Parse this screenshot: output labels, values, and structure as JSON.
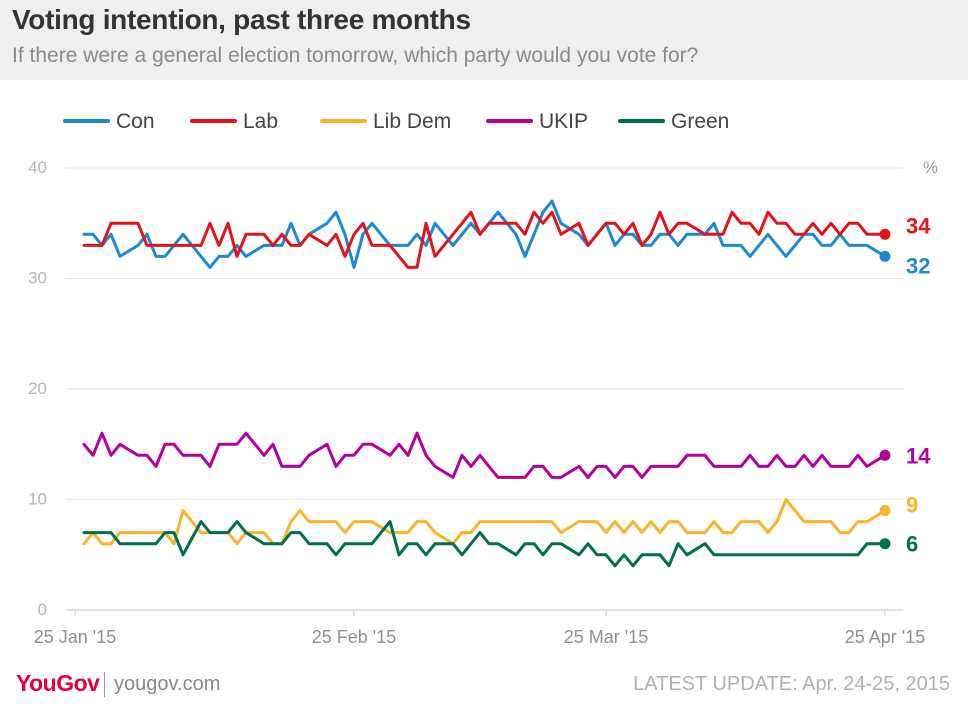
{
  "header": {
    "title": "Voting intention, past three months",
    "subtitle": "If there were a general election tomorrow, which party would you vote for?"
  },
  "footer": {
    "logo": "YouGov",
    "site": "yougov.com",
    "update_label": "LATEST UPDATE:",
    "update_value": "Apr. 24-25, 2015"
  },
  "chart_data": {
    "type": "line",
    "title": "Voting intention, past three months",
    "subtitle": "If there were a general election tomorrow, which party would you vote for?",
    "unit_label": "%",
    "ylim": [
      0,
      40
    ],
    "yticks": [
      0,
      10,
      20,
      30,
      40
    ],
    "xlim": [
      "2015-01-24",
      "2015-04-27"
    ],
    "xticks": [
      {
        "date": "2015-01-25",
        "label": "25 Jan '15"
      },
      {
        "date": "2015-02-25",
        "label": "25 Feb '15"
      },
      {
        "date": "2015-03-25",
        "label": "25 Mar '15"
      },
      {
        "date": "2015-04-25",
        "label": "25 Apr '15"
      }
    ],
    "grid": "horizontal",
    "legend_position": "top",
    "dates": [
      "2015-01-26",
      "2015-01-27",
      "2015-01-28",
      "2015-01-29",
      "2015-01-30",
      "2015-02-01",
      "2015-02-02",
      "2015-02-03",
      "2015-02-04",
      "2015-02-05",
      "2015-02-06",
      "2015-02-08",
      "2015-02-09",
      "2015-02-10",
      "2015-02-11",
      "2015-02-12",
      "2015-02-13",
      "2015-02-15",
      "2015-02-16",
      "2015-02-17",
      "2015-02-18",
      "2015-02-19",
      "2015-02-20",
      "2015-02-22",
      "2015-02-23",
      "2015-02-24",
      "2015-02-25",
      "2015-02-26",
      "2015-02-27",
      "2015-03-01",
      "2015-03-02",
      "2015-03-03",
      "2015-03-04",
      "2015-03-05",
      "2015-03-06",
      "2015-03-08",
      "2015-03-09",
      "2015-03-10",
      "2015-03-11",
      "2015-03-12",
      "2015-03-13",
      "2015-03-15",
      "2015-03-16",
      "2015-03-17",
      "2015-03-18",
      "2015-03-19",
      "2015-03-20",
      "2015-03-22",
      "2015-03-23",
      "2015-03-24",
      "2015-03-25",
      "2015-03-26",
      "2015-03-27",
      "2015-03-28",
      "2015-03-29",
      "2015-03-30",
      "2015-03-31",
      "2015-04-01",
      "2015-04-02",
      "2015-04-03",
      "2015-04-05",
      "2015-04-06",
      "2015-04-07",
      "2015-04-08",
      "2015-04-09",
      "2015-04-10",
      "2015-04-11",
      "2015-04-12",
      "2015-04-13",
      "2015-04-14",
      "2015-04-15",
      "2015-04-16",
      "2015-04-17",
      "2015-04-18",
      "2015-04-19",
      "2015-04-20",
      "2015-04-21",
      "2015-04-22",
      "2015-04-23",
      "2015-04-25"
    ],
    "series": [
      {
        "name": "Con",
        "color": "#1d89d3",
        "end_label": "32",
        "values": [
          34,
          34,
          33,
          34,
          32,
          33,
          34,
          32,
          32,
          33,
          34,
          32,
          31,
          32,
          32,
          33,
          32,
          33,
          33,
          33,
          35,
          33,
          34,
          35,
          36,
          34,
          31,
          34,
          35,
          33,
          33,
          33,
          34,
          33,
          35,
          33,
          34,
          35,
          34,
          35,
          36,
          34,
          32,
          34,
          36,
          37,
          35,
          34,
          33,
          34,
          35,
          33,
          34,
          34,
          33,
          33,
          34,
          34,
          33,
          34,
          34,
          35,
          33,
          33,
          33,
          32,
          33,
          34,
          33,
          32,
          33,
          34,
          34,
          33,
          33,
          34,
          33,
          33,
          33,
          32
        ]
      },
      {
        "name": "Lab",
        "color": "#e2141a",
        "end_label": "34",
        "values": [
          33,
          33,
          33,
          35,
          35,
          35,
          33,
          33,
          33,
          33,
          33,
          33,
          35,
          33,
          35,
          32,
          34,
          34,
          33,
          34,
          33,
          33,
          34,
          33,
          34,
          32,
          34,
          35,
          33,
          33,
          32,
          31,
          31,
          35,
          32,
          34,
          35,
          36,
          34,
          35,
          35,
          35,
          34,
          36,
          35,
          36,
          34,
          35,
          33,
          34,
          35,
          35,
          34,
          35,
          33,
          34,
          36,
          34,
          35,
          35,
          34,
          34,
          34,
          36,
          35,
          35,
          34,
          36,
          35,
          35,
          34,
          34,
          35,
          34,
          35,
          34,
          35,
          35,
          34,
          34
        ]
      },
      {
        "name": "Lib Dem",
        "color": "#f9b429",
        "end_label": "9",
        "values": [
          6,
          7,
          6,
          6,
          7,
          7,
          7,
          7,
          7,
          6,
          9,
          7,
          7,
          7,
          7,
          6,
          7,
          7,
          6,
          6,
          8,
          9,
          8,
          8,
          8,
          7,
          8,
          8,
          8,
          7,
          7,
          7,
          8,
          8,
          7,
          6,
          7,
          7,
          8,
          8,
          8,
          8,
          8,
          8,
          8,
          8,
          7,
          8,
          8,
          8,
          7,
          8,
          7,
          8,
          7,
          8,
          7,
          8,
          8,
          7,
          7,
          8,
          7,
          7,
          8,
          8,
          8,
          7,
          8,
          10,
          9,
          8,
          8,
          8,
          8,
          7,
          7,
          8,
          8,
          9
        ]
      },
      {
        "name": "UKIP",
        "color": "#b3009d",
        "end_label": "14",
        "values": [
          15,
          14,
          16,
          14,
          15,
          14,
          14,
          13,
          15,
          15,
          14,
          14,
          13,
          15,
          15,
          15,
          16,
          14,
          15,
          13,
          13,
          13,
          14,
          15,
          13,
          14,
          14,
          15,
          15,
          14,
          15,
          14,
          16,
          14,
          13,
          12,
          14,
          13,
          14,
          13,
          12,
          12,
          12,
          13,
          13,
          12,
          12,
          13,
          12,
          13,
          13,
          12,
          13,
          13,
          12,
          13,
          13,
          13,
          13,
          14,
          14,
          13,
          13,
          13,
          13,
          14,
          13,
          13,
          14,
          13,
          13,
          14,
          13,
          14,
          13,
          13,
          13,
          14,
          13,
          14
        ]
      },
      {
        "name": "Green",
        "color": "#006e51",
        "end_label": "6",
        "values": [
          7,
          7,
          7,
          7,
          6,
          6,
          6,
          6,
          7,
          7,
          5,
          8,
          7,
          7,
          7,
          8,
          7,
          6,
          6,
          6,
          7,
          7,
          6,
          6,
          5,
          6,
          6,
          6,
          6,
          8,
          5,
          6,
          6,
          5,
          6,
          6,
          5,
          6,
          7,
          6,
          6,
          5,
          6,
          6,
          5,
          6,
          6,
          5,
          6,
          5,
          5,
          4,
          5,
          4,
          5,
          5,
          5,
          4,
          6,
          5,
          6,
          5,
          5,
          5,
          5,
          5,
          5,
          5,
          5,
          5,
          5,
          5,
          5,
          5,
          5,
          5,
          5,
          5,
          6,
          6
        ]
      }
    ]
  }
}
